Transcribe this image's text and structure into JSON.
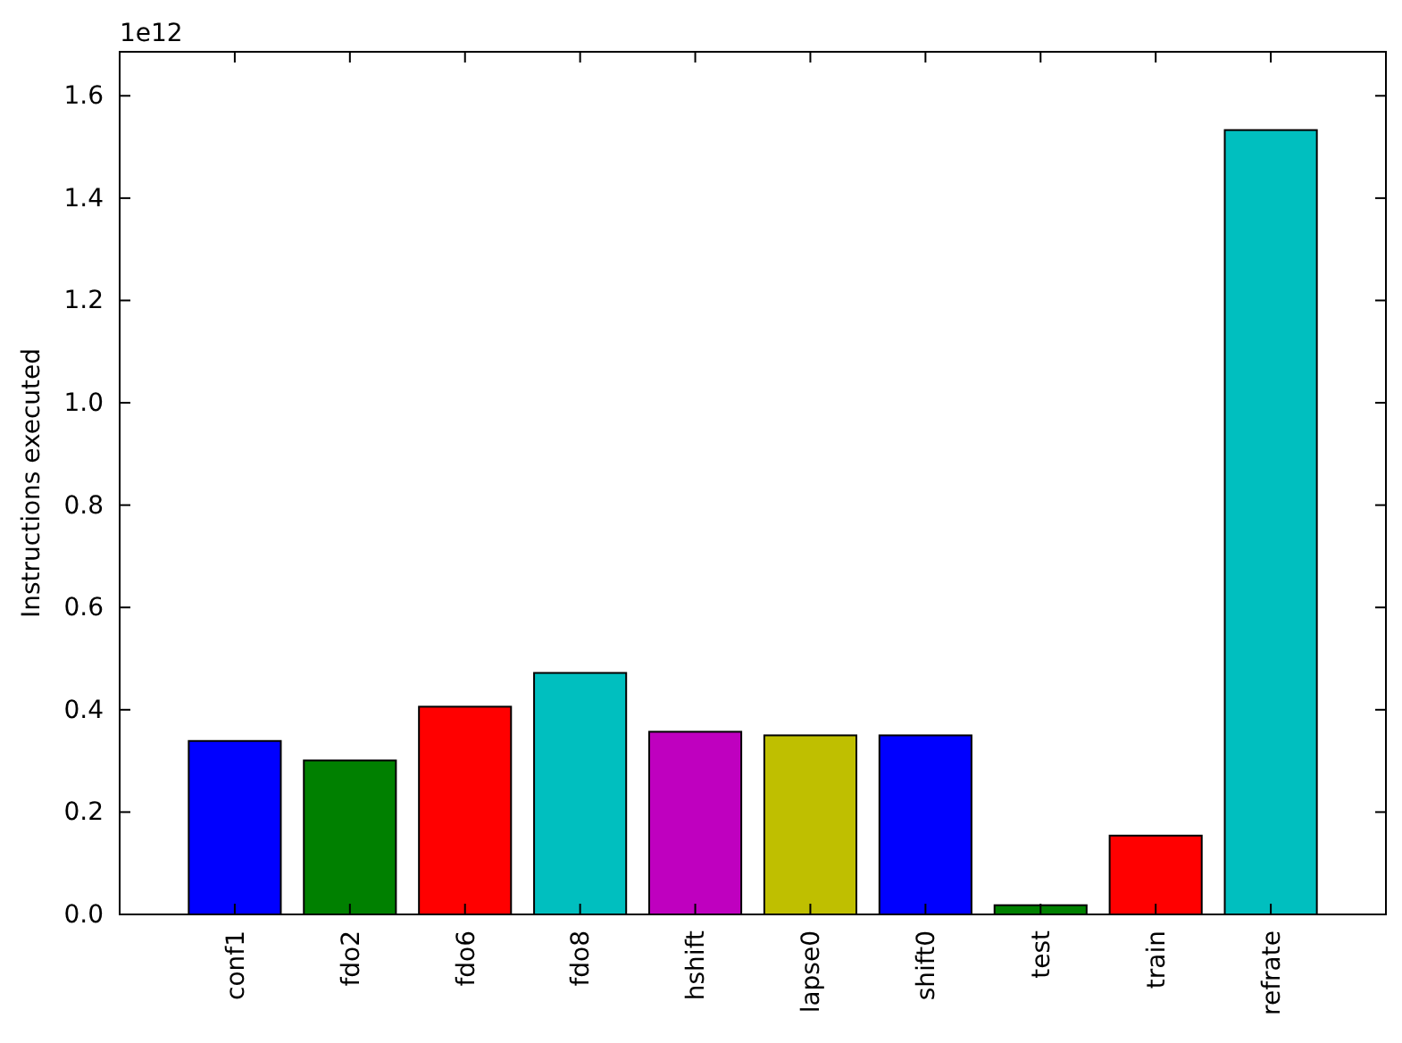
{
  "chart_data": {
    "type": "bar",
    "ylabel": "Instructions executed",
    "annotations": [
      "1e12"
    ],
    "categories": [
      "conf1",
      "fdo2",
      "fdo6",
      "fdo8",
      "hshift",
      "lapse0",
      "shift0",
      "test",
      "train",
      "refrate"
    ],
    "values": [
      0.339,
      0.301,
      0.406,
      0.472,
      0.357,
      0.35,
      0.35,
      0.018,
      0.154,
      1.533
    ],
    "colors": [
      "#0000ff",
      "#008000",
      "#ff0000",
      "#00bfbf",
      "#bf00bf",
      "#bfbf00",
      "#0000ff",
      "#008000",
      "#ff0000",
      "#00bfbf"
    ],
    "ylim": [
      0,
      1.686
    ],
    "yticks": [
      {
        "value": 0,
        "label": "0.0"
      },
      0.2,
      0.4,
      0.6,
      0.8,
      {
        "value": 1,
        "label": "1.0"
      },
      1.2,
      1.4,
      1.6
    ]
  }
}
